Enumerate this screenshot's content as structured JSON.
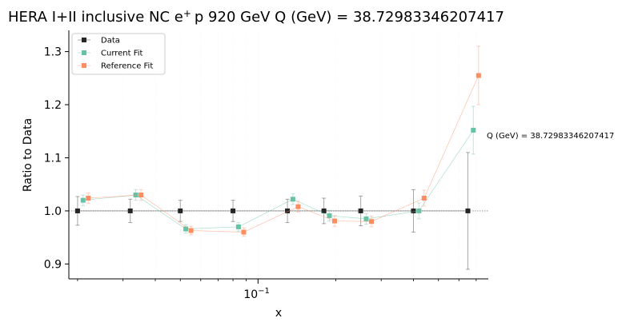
{
  "chart_data": {
    "type": "scatter",
    "title": "HERA I+II inclusive NC e",
    "title_sup": "+",
    "title_rest": "p 920 GeV Q (GeV) = 38.72983346207417",
    "xlabel": "x",
    "ylabel": "Ratio to Data",
    "xscale": "log",
    "xlim": [
      0.0185,
      0.78
    ],
    "ylim": [
      0.872,
      1.34
    ],
    "yticks": [
      0.9,
      1.0,
      1.1,
      1.2,
      1.3
    ],
    "ytick_labels": [
      "0.9",
      "1.0",
      "1.1",
      "1.2",
      "1.3"
    ],
    "xtick_major": [
      {
        "value": 0.1,
        "base": "10",
        "exp": "−1"
      }
    ],
    "xtick_minor": [
      0.02,
      0.03,
      0.04,
      0.05,
      0.06,
      0.07,
      0.08,
      0.09,
      0.2,
      0.3,
      0.4,
      0.5,
      0.6,
      0.7
    ],
    "annotation": "Q (GeV) = 38.72983346207417",
    "legend": {
      "position": "top-left"
    },
    "grid": true,
    "x": [
      0.02,
      0.032,
      0.05,
      0.08,
      0.13,
      0.18,
      0.25,
      0.4,
      0.65
    ],
    "series": [
      {
        "name": "Data",
        "color": "#262626",
        "offset": 1.0,
        "values": [
          1.0,
          1.0,
          1.0,
          1.0,
          1.0,
          1.0,
          1.0,
          1.0,
          1.0
        ],
        "errors": [
          0.027,
          0.022,
          0.02,
          0.02,
          0.022,
          0.024,
          0.028,
          0.04,
          0.11
        ]
      },
      {
        "name": "Current Fit",
        "color": "#66c2a5",
        "offset": 1.05,
        "values": [
          1.02,
          1.03,
          0.966,
          0.97,
          1.022,
          0.991,
          0.985,
          1.0,
          1.152
        ],
        "errors": [
          0.01,
          0.01,
          0.008,
          0.008,
          0.01,
          0.01,
          0.01,
          0.015,
          0.045
        ]
      },
      {
        "name": "Reference Fit",
        "color": "#fc8d62",
        "offset": 1.1,
        "values": [
          1.024,
          1.03,
          0.963,
          0.96,
          1.008,
          0.981,
          0.98,
          1.024,
          1.255
        ],
        "errors": [
          0.01,
          0.01,
          0.008,
          0.008,
          0.01,
          0.01,
          0.01,
          0.015,
          0.055
        ]
      }
    ]
  }
}
